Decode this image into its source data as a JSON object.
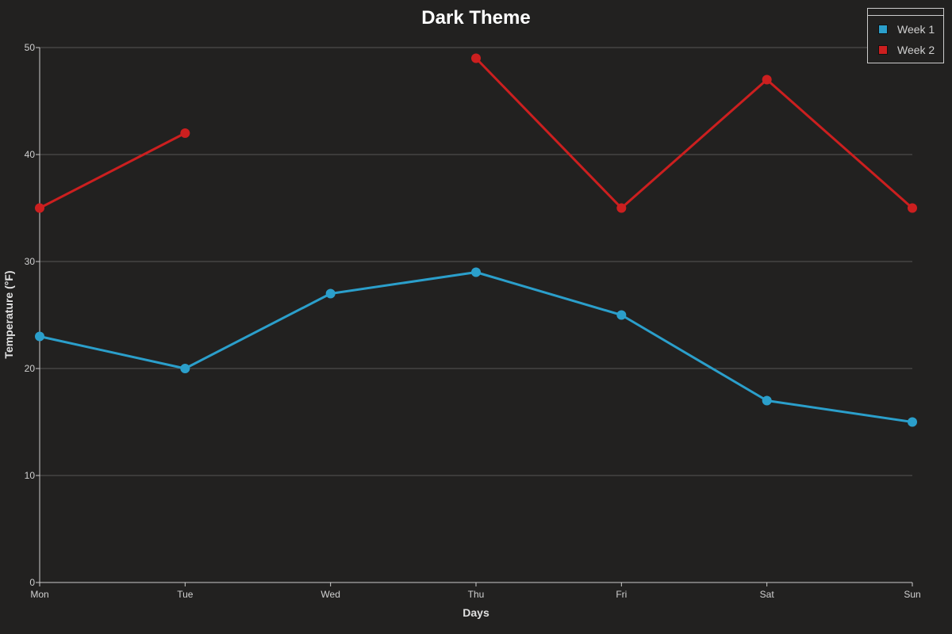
{
  "chart_data": {
    "type": "line",
    "title": "Dark Theme",
    "xlabel": "Days",
    "ylabel": "Temperature (°F)",
    "categories": [
      "Mon",
      "Tue",
      "Wed",
      "Thu",
      "Fri",
      "Sat",
      "Sun"
    ],
    "ylim": [
      0,
      50
    ],
    "yticks": [
      0,
      10,
      20,
      30,
      40,
      50
    ],
    "grid": true,
    "legend_position": "top-right",
    "series": [
      {
        "name": "Week 1",
        "color": "#2b9fcb",
        "values": [
          23,
          20,
          27,
          29,
          25,
          17,
          15
        ]
      },
      {
        "name": "Week 2",
        "color": "#cc1f1f",
        "values": [
          35,
          42,
          null,
          49,
          35,
          47,
          35
        ]
      }
    ],
    "background_color": "#222120",
    "grid_color": "#555555",
    "axis_color": "#cccccc"
  }
}
